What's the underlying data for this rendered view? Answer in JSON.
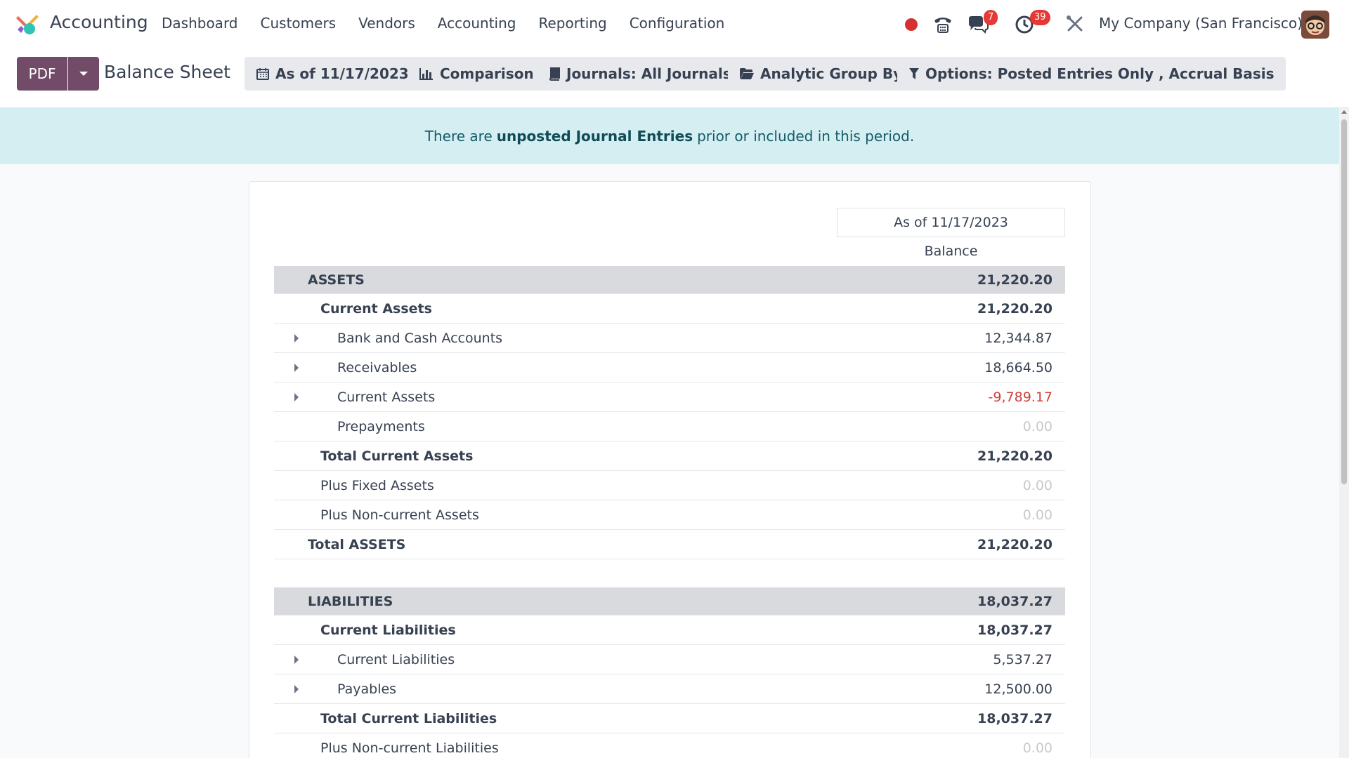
{
  "navbar": {
    "app_name": "Accounting",
    "menu": [
      "Dashboard",
      "Customers",
      "Vendors",
      "Accounting",
      "Reporting",
      "Configuration"
    ],
    "messages_badge": "7",
    "activities_badge": "39",
    "company": "My Company (San Francisco)"
  },
  "control": {
    "pdf_label": "PDF",
    "title": "Balance Sheet",
    "filters": {
      "date": "As of 11/17/2023",
      "comparison": "Comparison",
      "journals": "Journals: All Journals",
      "analytic": "Analytic Group By",
      "options": "Options: Posted Entries Only , Accrual Basis"
    }
  },
  "alert": {
    "prefix": "There are",
    "link": "unposted Journal Entries",
    "suffix": "prior or included in this period."
  },
  "report": {
    "column_header": "As of 11/17/2023",
    "column_sub": "Balance",
    "rows": [
      {
        "label": "ASSETS",
        "amount": "21,220.20"
      },
      {
        "label": "Current Assets",
        "amount": "21,220.20"
      },
      {
        "label": "Bank and Cash Accounts",
        "amount": "12,344.87"
      },
      {
        "label": "Receivables",
        "amount": "18,664.50"
      },
      {
        "label": "Current Assets",
        "amount": "-9,789.17"
      },
      {
        "label": "Prepayments",
        "amount": "0.00"
      },
      {
        "label": "Total Current Assets",
        "amount": "21,220.20"
      },
      {
        "label": "Plus Fixed Assets",
        "amount": "0.00"
      },
      {
        "label": "Plus Non-current Assets",
        "amount": "0.00"
      },
      {
        "label": "Total ASSETS",
        "amount": "21,220.20"
      },
      {
        "label": "LIABILITIES",
        "amount": "18,037.27"
      },
      {
        "label": "Current Liabilities",
        "amount": "18,037.27"
      },
      {
        "label": "Current Liabilities",
        "amount": "5,537.27"
      },
      {
        "label": "Payables",
        "amount": "12,500.00"
      },
      {
        "label": "Total Current Liabilities",
        "amount": "18,037.27"
      },
      {
        "label": "Plus Non-current Liabilities",
        "amount": "0.00"
      }
    ]
  },
  "colors": {
    "brand": "#714b67",
    "alert_bg": "#d5eef2",
    "negative": "#d23f3a",
    "zero": "#c7c9cc",
    "section_bg": "#d8dadd"
  }
}
